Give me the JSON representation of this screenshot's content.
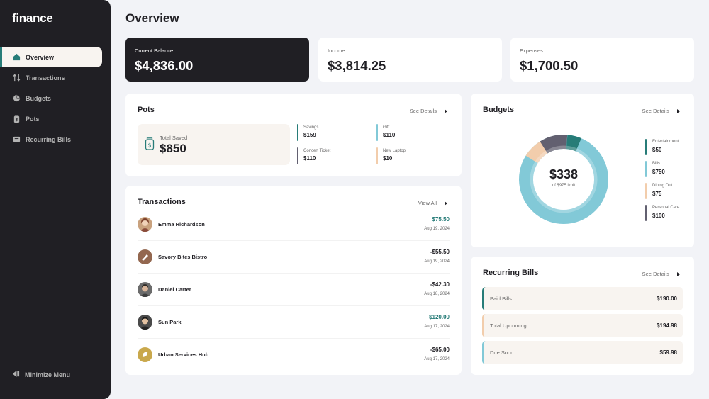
{
  "app": {
    "logo": "finance"
  },
  "sidebar": {
    "items": [
      {
        "label": "Overview",
        "icon": "home-icon",
        "active": true
      },
      {
        "label": "Transactions",
        "icon": "arrows-updown-icon",
        "active": false
      },
      {
        "label": "Budgets",
        "icon": "pie-chart-icon",
        "active": false
      },
      {
        "label": "Pots",
        "icon": "jar-icon",
        "active": false
      },
      {
        "label": "Recurring Bills",
        "icon": "receipt-icon",
        "active": false
      }
    ],
    "minimize_label": "Minimize Menu"
  },
  "page": {
    "title": "Overview"
  },
  "stats": {
    "current_balance": {
      "label": "Current Balance",
      "value": "$4,836.00"
    },
    "income": {
      "label": "Income",
      "value": "$3,814.25"
    },
    "expenses": {
      "label": "Expenses",
      "value": "$1,700.50"
    }
  },
  "pots": {
    "title": "Pots",
    "link": "See Details",
    "total_saved_label": "Total Saved",
    "total_saved_value": "$850",
    "items": [
      {
        "name": "Savings",
        "amount": "$159",
        "color": "#277c78"
      },
      {
        "name": "Gift",
        "amount": "$110",
        "color": "#82c9d7"
      },
      {
        "name": "Concert Ticket",
        "amount": "$110",
        "color": "#626070"
      },
      {
        "name": "New Laptop",
        "amount": "$10",
        "color": "#f2cdac"
      }
    ]
  },
  "transactions": {
    "title": "Transactions",
    "link": "View All",
    "items": [
      {
        "name": "Emma Richardson",
        "amount": "$75.50",
        "date": "Aug 19, 2024",
        "positive": true
      },
      {
        "name": "Savory Bites Bistro",
        "amount": "-$55.50",
        "date": "Aug 19, 2024",
        "positive": false
      },
      {
        "name": "Daniel Carter",
        "amount": "-$42.30",
        "date": "Aug 18, 2024",
        "positive": false
      },
      {
        "name": "Sun Park",
        "amount": "$120.00",
        "date": "Aug 17, 2024",
        "positive": true
      },
      {
        "name": "Urban Services Hub",
        "amount": "-$65.00",
        "date": "Aug 17, 2024",
        "positive": false
      }
    ]
  },
  "budgets": {
    "title": "Budgets",
    "link": "See Details",
    "spent": "$338",
    "limit_text": "of $975 limit",
    "items": [
      {
        "name": "Entertainment",
        "amount": "$50",
        "color": "#277c78"
      },
      {
        "name": "Bills",
        "amount": "$750",
        "color": "#82c9d7"
      },
      {
        "name": "Dining Out",
        "amount": "$75",
        "color": "#f2cdac"
      },
      {
        "name": "Personal Care",
        "amount": "$100",
        "color": "#626070"
      }
    ]
  },
  "recurring_bills": {
    "title": "Recurring Bills",
    "link": "See Details",
    "items": [
      {
        "name": "Paid Bills",
        "amount": "$190.00",
        "color": "#277c78"
      },
      {
        "name": "Total Upcoming",
        "amount": "$194.98",
        "color": "#f2cdac"
      },
      {
        "name": "Due Soon",
        "amount": "$59.98",
        "color": "#82c9d7"
      }
    ]
  }
}
